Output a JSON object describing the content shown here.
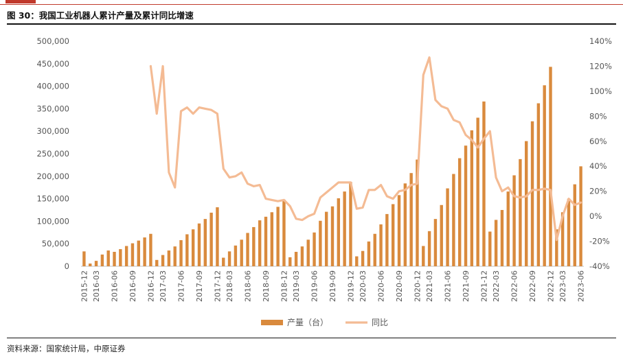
{
  "figure": {
    "title": "图 30：我国工业机器人累计产量及累计同比增速",
    "source": "资料来源：国家统计局，中原证券"
  },
  "colors": {
    "bar": "#d98a3d",
    "line": "#f4bb94",
    "accent": "#c0392b"
  },
  "chart_data": {
    "type": "bar+line",
    "categories": [
      "2015-12",
      "2016-02",
      "2016-03",
      "2016-04",
      "2016-05",
      "2016-06",
      "2016-07",
      "2016-08",
      "2016-09",
      "2016-10",
      "2016-11",
      "2016-12",
      "2017-02",
      "2017-03",
      "2017-04",
      "2017-05",
      "2017-06",
      "2017-07",
      "2017-08",
      "2017-09",
      "2017-10",
      "2017-11",
      "2017-12",
      "2018-02",
      "2018-03",
      "2018-04",
      "2018-05",
      "2018-06",
      "2018-07",
      "2018-08",
      "2018-09",
      "2018-10",
      "2018-11",
      "2018-12",
      "2019-02",
      "2019-03",
      "2019-04",
      "2019-05",
      "2019-06",
      "2019-07",
      "2019-08",
      "2019-09",
      "2019-10",
      "2019-11",
      "2019-12",
      "2020-02",
      "2020-03",
      "2020-04",
      "2020-05",
      "2020-06",
      "2020-07",
      "2020-08",
      "2020-09",
      "2020-10",
      "2020-11",
      "2020-12",
      "2021-02",
      "2021-03",
      "2021-04",
      "2021-05",
      "2021-06",
      "2021-07",
      "2021-08",
      "2021-09",
      "2021-10",
      "2021-11",
      "2021-12",
      "2022-02",
      "2022-03",
      "2022-04",
      "2022-05",
      "2022-06",
      "2022-07",
      "2022-08",
      "2022-09",
      "2022-10",
      "2022-11",
      "2022-12",
      "2023-02",
      "2023-03",
      "2023-04",
      "2023-05",
      "2023-06"
    ],
    "tick_labels": [
      "2015-12",
      "2016-03",
      "2016-06",
      "2016-09",
      "2016-12",
      "2017-03",
      "2017-06",
      "2017-09",
      "2017-12",
      "2018-03",
      "2018-06",
      "2018-09",
      "2018-12",
      "2019-03",
      "2019-06",
      "2019-09",
      "2019-12",
      "2020-03",
      "2020-06",
      "2020-09",
      "2020-12",
      "2021-03",
      "2021-06",
      "2021-09",
      "2021-12",
      "2022-03",
      "2022-06",
      "2022-09",
      "2022-12",
      "2023-03",
      "2023-06"
    ],
    "series": [
      {
        "name": "产量（台）",
        "type": "bar",
        "axis": "left",
        "values": [
          33000,
          6000,
          12000,
          26000,
          35000,
          32000,
          38000,
          45000,
          51000,
          57000,
          64000,
          72000,
          14000,
          25000,
          35000,
          44000,
          58000,
          71000,
          82000,
          95000,
          105000,
          119000,
          131000,
          19000,
          33000,
          46000,
          59000,
          74000,
          87000,
          102000,
          110000,
          120000,
          132000,
          148000,
          20000,
          32000,
          44000,
          59000,
          75000,
          101000,
          121000,
          133000,
          151000,
          166000,
          187000,
          22000,
          34000,
          55000,
          72000,
          93000,
          116000,
          138000,
          158000,
          184000,
          207000,
          237000,
          45000,
          78000,
          105000,
          136000,
          173000,
          205000,
          240000,
          268000,
          302000,
          330000,
          366000,
          77000,
          103000,
          125000,
          166000,
          202000,
          238000,
          278000,
          322000,
          362000,
          402000,
          443000,
          82000,
          120000,
          150000,
          182000,
          222000
        ]
      },
      {
        "name": "同比",
        "type": "line",
        "axis": "right",
        "values": [
          null,
          null,
          null,
          null,
          null,
          null,
          null,
          null,
          null,
          null,
          null,
          120,
          82,
          120,
          35,
          23,
          84,
          87,
          82,
          87,
          86,
          85,
          82,
          38,
          31,
          32,
          35,
          26,
          24,
          25,
          14,
          13,
          12,
          13,
          8,
          -2,
          -3,
          0,
          2,
          15,
          19,
          23,
          27,
          27,
          27,
          6,
          7,
          21,
          21,
          25,
          16,
          14,
          20,
          21,
          25,
          26,
          113,
          127,
          93,
          88,
          86,
          77,
          75,
          65,
          61,
          55,
          62,
          68,
          31,
          20,
          23,
          16,
          15,
          16,
          21,
          21,
          22,
          21,
          -19,
          0,
          14,
          9,
          11
        ]
      }
    ],
    "y_left": {
      "range": [
        0,
        500000
      ],
      "ticks": [
        "0",
        "50,000",
        "100,000",
        "150,000",
        "200,000",
        "250,000",
        "300,000",
        "350,000",
        "400,000",
        "450,000",
        "500,000"
      ]
    },
    "y_right": {
      "range": [
        -40,
        140
      ],
      "ticks": [
        "-40%",
        "-20%",
        "0%",
        "20%",
        "40%",
        "60%",
        "80%",
        "100%",
        "120%",
        "140%"
      ]
    },
    "grid": false,
    "legend_position": "bottom-center"
  }
}
